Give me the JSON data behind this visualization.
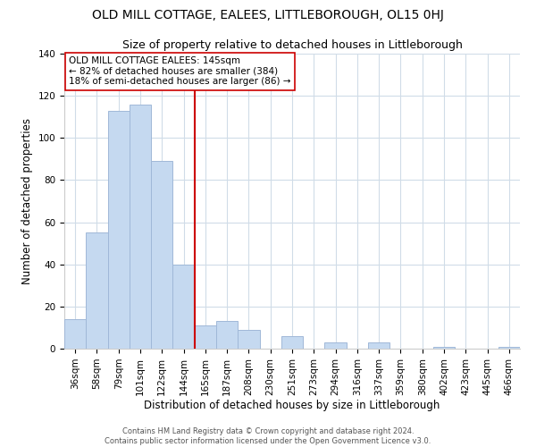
{
  "title": "OLD MILL COTTAGE, EALEES, LITTLEBOROUGH, OL15 0HJ",
  "subtitle": "Size of property relative to detached houses in Littleborough",
  "xlabel": "Distribution of detached houses by size in Littleborough",
  "ylabel": "Number of detached properties",
  "bar_labels": [
    "36sqm",
    "58sqm",
    "79sqm",
    "101sqm",
    "122sqm",
    "144sqm",
    "165sqm",
    "187sqm",
    "208sqm",
    "230sqm",
    "251sqm",
    "273sqm",
    "294sqm",
    "316sqm",
    "337sqm",
    "359sqm",
    "380sqm",
    "402sqm",
    "423sqm",
    "445sqm",
    "466sqm"
  ],
  "bar_values": [
    14,
    55,
    113,
    116,
    89,
    40,
    11,
    13,
    9,
    0,
    6,
    0,
    3,
    0,
    3,
    0,
    0,
    1,
    0,
    0,
    1
  ],
  "bar_color": "#c5d9f0",
  "bar_edge_color": "#a0b8d8",
  "vline_color": "#cc0000",
  "annotation_title": "OLD MILL COTTAGE EALEES: 145sqm",
  "annotation_line1": "← 82% of detached houses are smaller (384)",
  "annotation_line2": "18% of semi-detached houses are larger (86) →",
  "annotation_box_color": "#ffffff",
  "annotation_box_edge": "#cc0000",
  "ylim": [
    0,
    140
  ],
  "yticks": [
    0,
    20,
    40,
    60,
    80,
    100,
    120,
    140
  ],
  "footer1": "Contains HM Land Registry data © Crown copyright and database right 2024.",
  "footer2": "Contains public sector information licensed under the Open Government Licence v3.0.",
  "bg_color": "#ffffff",
  "grid_color": "#d0dce8",
  "title_fontsize": 10,
  "subtitle_fontsize": 9,
  "tick_fontsize": 7.5,
  "axis_label_fontsize": 8.5,
  "annotation_fontsize": 7.5,
  "footer_fontsize": 6
}
